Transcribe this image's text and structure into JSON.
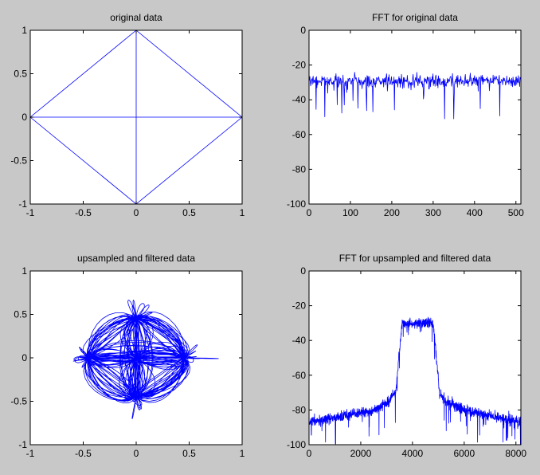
{
  "figure": {
    "background": "#c8c8c8",
    "axes_background": "#ffffff",
    "line_color": "#0000ff"
  },
  "chart_data": [
    {
      "type": "line",
      "title": "original data",
      "xlim": [
        -1,
        1
      ],
      "ylim": [
        -1,
        1
      ],
      "xticks": [
        -1,
        -0.5,
        0,
        0.5,
        1
      ],
      "xtick_labels": [
        "-1",
        "-0.5",
        "0",
        "0.5",
        "1"
      ],
      "yticks": [
        -1,
        -0.5,
        0,
        0.5,
        1
      ],
      "ytick_labels": [
        "-1",
        "-0.5",
        "0",
        "0.5",
        "1"
      ],
      "series": [
        {
          "kind": "path",
          "x": [
            1,
            0,
            -1,
            0,
            1,
            -1,
            0,
            0
          ],
          "y": [
            0,
            1,
            0,
            -1,
            0,
            0,
            0,
            1
          ]
        },
        {
          "kind": "path",
          "x": [
            0,
            0
          ],
          "y": [
            0,
            -1
          ]
        }
      ]
    },
    {
      "type": "line",
      "title": "FFT for original data",
      "xlim": [
        0,
        512
      ],
      "ylim": [
        -100,
        0
      ],
      "xticks": [
        0,
        100,
        200,
        300,
        400,
        500
      ],
      "xtick_labels": [
        "0",
        "100",
        "200",
        "300",
        "400",
        "500"
      ],
      "yticks": [
        -100,
        -80,
        -60,
        -40,
        -20,
        0
      ],
      "ytick_labels": [
        "-100",
        "-80",
        "-60",
        "-40",
        "-20",
        "0"
      ],
      "series": [
        {
          "kind": "noisy_spectrum",
          "x_range": [
            0,
            512
          ],
          "points": 512,
          "profile_x": [
            0,
            512
          ],
          "profile_y": [
            -29,
            -29
          ],
          "noise": 4.5,
          "spikes": 0.08,
          "spike_depth": 22,
          "seed": 7
        }
      ]
    },
    {
      "type": "line",
      "title": "upsampled and filtered data",
      "xlim": [
        -1,
        1
      ],
      "ylim": [
        -1,
        1
      ],
      "xticks": [
        -1,
        -0.5,
        0,
        0.5,
        1
      ],
      "xtick_labels": [
        "-1",
        "-0.5",
        "0",
        "0.5",
        "1"
      ],
      "yticks": [
        -1,
        -0.5,
        0,
        0.5,
        1
      ],
      "ytick_labels": [
        "-1",
        "-0.5",
        "0",
        "0.5",
        "1"
      ],
      "series": [
        {
          "kind": "filtered_constellation",
          "symbols": 260,
          "oversample": 10,
          "rx": 0.45,
          "ry": 0.45,
          "seed": 11
        }
      ]
    },
    {
      "type": "line",
      "title": "FFT for upsampled and filtered data",
      "xlim": [
        0,
        8192
      ],
      "ylim": [
        -100,
        0
      ],
      "xticks": [
        0,
        2000,
        4000,
        6000,
        8000
      ],
      "xtick_labels": [
        "0",
        "2000",
        "4000",
        "6000",
        "8000"
      ],
      "yticks": [
        -100,
        -80,
        -60,
        -40,
        -20,
        0
      ],
      "ytick_labels": [
        "-100",
        "-80",
        "-60",
        "-40",
        "-20",
        "0"
      ],
      "series": [
        {
          "kind": "noisy_spectrum",
          "x_range": [
            0,
            8192
          ],
          "points": 1400,
          "profile_x": [
            0,
            2500,
            3100,
            3350,
            3600,
            4800,
            5050,
            5300,
            6000,
            8192
          ],
          "profile_y": [
            -87,
            -80,
            -75,
            -70,
            -30,
            -30,
            -70,
            -75,
            -80,
            -87
          ],
          "noise": 3.5,
          "spikes": 0.05,
          "spike_depth": 16,
          "seed": 3
        }
      ]
    }
  ]
}
